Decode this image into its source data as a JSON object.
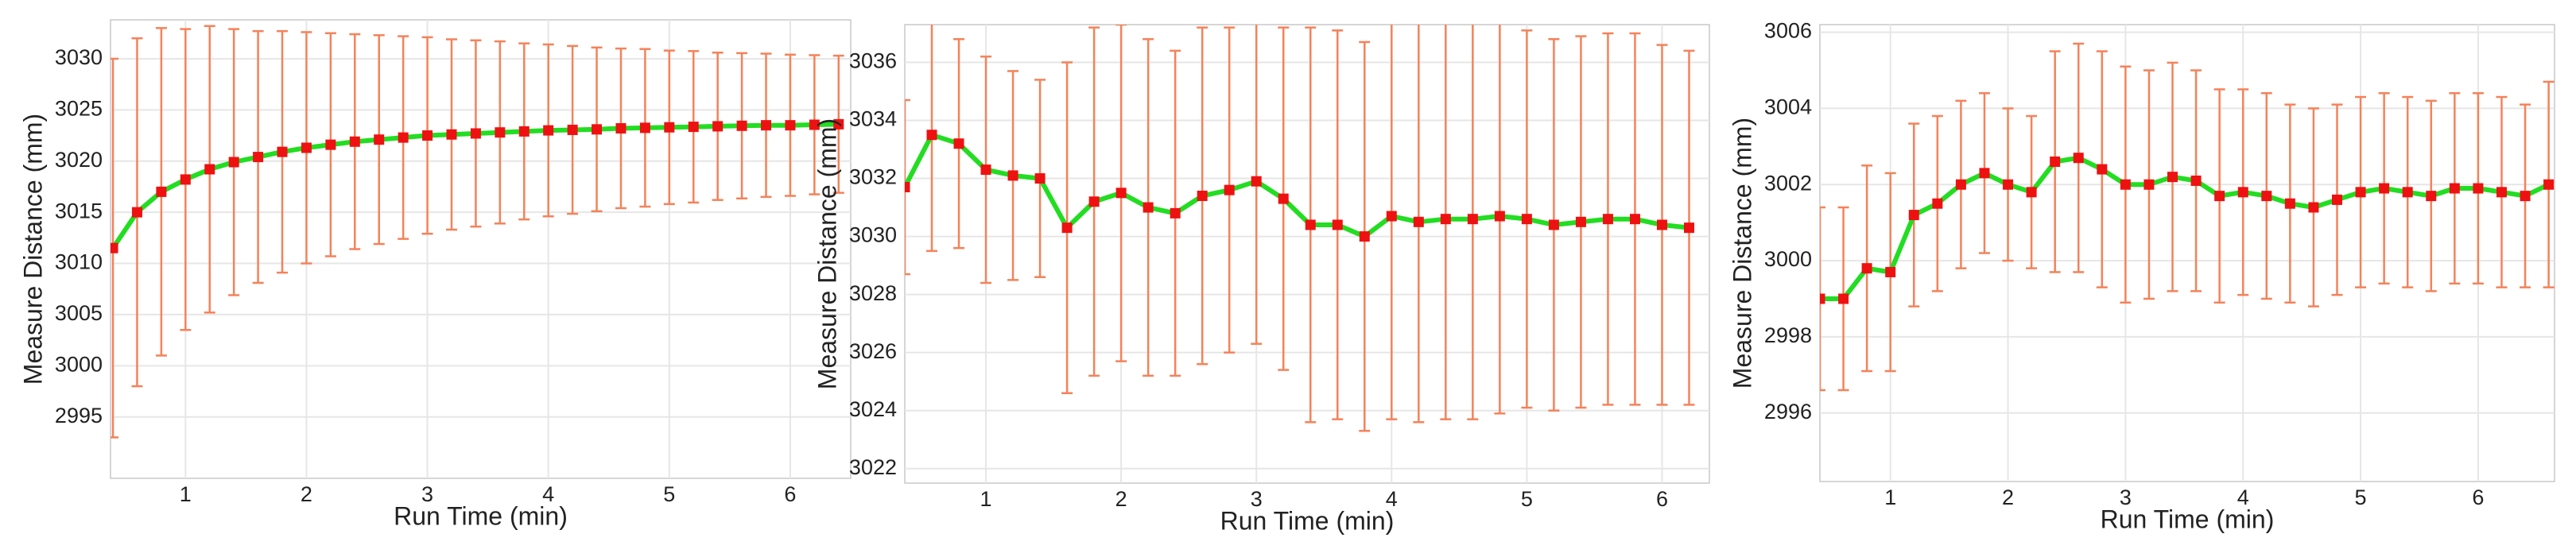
{
  "chart_data": [
    {
      "type": "line",
      "xlabel": "Run Time (min)",
      "ylabel": "Measure Distance (mm)",
      "xlim": [
        0.38,
        6.5
      ],
      "ylim": [
        2989,
        3033.8
      ],
      "xticks": [
        1,
        2,
        3,
        4,
        5,
        6
      ],
      "yticks": [
        2995,
        3000,
        3005,
        3010,
        3015,
        3020,
        3025,
        3030
      ],
      "grid": true,
      "x": [
        0.4,
        0.6,
        0.8,
        1.0,
        1.2,
        1.4,
        1.6,
        1.8,
        2.0,
        2.2,
        2.4,
        2.6,
        2.8,
        3.0,
        3.2,
        3.4,
        3.6,
        3.8,
        4.0,
        4.2,
        4.4,
        4.6,
        4.8,
        5.0,
        5.2,
        5.4,
        5.6,
        5.8,
        6.0,
        6.2,
        6.4
      ],
      "series": [
        {
          "color": "#22dd22",
          "marker_color": "#ee1111",
          "error_color": "#f4825a",
          "values": [
            3011.5,
            3015,
            3017,
            3018.2,
            3019.2,
            3019.9,
            3020.4,
            3020.9,
            3021.3,
            3021.6,
            3021.9,
            3022.1,
            3022.3,
            3022.5,
            3022.6,
            3022.7,
            3022.8,
            3022.9,
            3023.0,
            3023.05,
            3023.1,
            3023.2,
            3023.25,
            3023.3,
            3023.35,
            3023.4,
            3023.45,
            3023.5,
            3023.5,
            3023.55,
            3023.6
          ],
          "errors": [
            18.5,
            17,
            16,
            14.7,
            14,
            13,
            12.3,
            11.8,
            11.3,
            10.9,
            10.5,
            10.2,
            9.9,
            9.6,
            9.3,
            9.1,
            8.9,
            8.6,
            8.4,
            8.2,
            8.0,
            7.8,
            7.7,
            7.5,
            7.4,
            7.2,
            7.1,
            7.0,
            6.9,
            6.8,
            6.7
          ]
        }
      ]
    },
    {
      "type": "line",
      "xlabel": "Run Time (min)",
      "ylabel": "Measure Distance (mm)",
      "xlim": [
        0.4,
        6.35
      ],
      "ylim": [
        3021.5,
        3037.3
      ],
      "xticks": [
        1,
        2,
        3,
        4,
        5,
        6
      ],
      "yticks": [
        3022,
        3024,
        3026,
        3028,
        3030,
        3032,
        3034,
        3036
      ],
      "grid": true,
      "x": [
        0.4,
        0.6,
        0.8,
        1.0,
        1.2,
        1.4,
        1.6,
        1.8,
        2.0,
        2.2,
        2.4,
        2.6,
        2.8,
        3.0,
        3.2,
        3.4,
        3.6,
        3.8,
        4.0,
        4.2,
        4.4,
        4.6,
        4.8,
        5.0,
        5.2,
        5.4,
        5.6,
        5.8,
        6.0,
        6.2
      ],
      "series": [
        {
          "color": "#22dd22",
          "marker_color": "#ee1111",
          "error_color": "#f4825a",
          "values": [
            3031.7,
            3033.5,
            3033.2,
            3032.3,
            3032.1,
            3032.0,
            3030.3,
            3031.2,
            3031.5,
            3031.0,
            3030.8,
            3031.4,
            3031.6,
            3031.9,
            3031.3,
            3030.4,
            3030.4,
            3030.0,
            3030.7,
            3030.5,
            3030.6,
            3030.6,
            3030.7,
            3030.6,
            3030.4,
            3030.5,
            3030.6,
            3030.6,
            3030.4,
            3030.3
          ],
          "errors": [
            3,
            4,
            3.6,
            3.9,
            3.6,
            3.4,
            5.7,
            6,
            5.8,
            5.8,
            5.6,
            5.8,
            5.6,
            5.6,
            5.9,
            6.8,
            6.7,
            6.7,
            7.0,
            6.9,
            6.9,
            6.9,
            6.8,
            6.5,
            6.4,
            6.4,
            6.4,
            6.4,
            6.2,
            6.1
          ]
        }
      ]
    },
    {
      "type": "line",
      "xlabel": "Run Time (min)",
      "ylabel": "Measure Distance (mm)",
      "xlim": [
        0.4,
        6.65
      ],
      "ylim": [
        2994.2,
        3006.2
      ],
      "xticks": [
        1,
        2,
        3,
        4,
        5,
        6
      ],
      "yticks": [
        2996,
        2998,
        3000,
        3002,
        3004,
        3006
      ],
      "grid": true,
      "x": [
        0.4,
        0.6,
        0.8,
        1.0,
        1.2,
        1.4,
        1.6,
        1.8,
        2.0,
        2.2,
        2.4,
        2.6,
        2.8,
        3.0,
        3.2,
        3.4,
        3.6,
        3.8,
        4.0,
        4.2,
        4.4,
        4.6,
        4.8,
        5.0,
        5.2,
        5.4,
        5.6,
        5.8,
        6.0,
        6.2,
        6.4,
        6.6
      ],
      "series": [
        {
          "color": "#22dd22",
          "marker_color": "#ee1111",
          "error_color": "#f4825a",
          "values": [
            2999.0,
            2999.0,
            2999.8,
            2999.7,
            3001.2,
            3001.5,
            3002.0,
            3002.3,
            3002.0,
            3001.8,
            3002.6,
            3002.7,
            3002.4,
            3002.0,
            3002.0,
            3002.2,
            3002.1,
            3001.7,
            3001.8,
            3001.7,
            3001.5,
            3001.4,
            3001.6,
            3001.8,
            3001.9,
            3001.8,
            3001.7,
            3001.9,
            3001.9,
            3001.8,
            3001.7,
            3002.0
          ],
          "errors": [
            2.4,
            2.4,
            2.7,
            2.6,
            2.4,
            2.3,
            2.2,
            2.1,
            2.0,
            2.0,
            2.9,
            3.0,
            3.1,
            3.1,
            3.0,
            3.0,
            2.9,
            2.8,
            2.7,
            2.7,
            2.6,
            2.6,
            2.5,
            2.5,
            2.5,
            2.5,
            2.5,
            2.5,
            2.5,
            2.5,
            2.4,
            2.7
          ]
        }
      ]
    }
  ]
}
